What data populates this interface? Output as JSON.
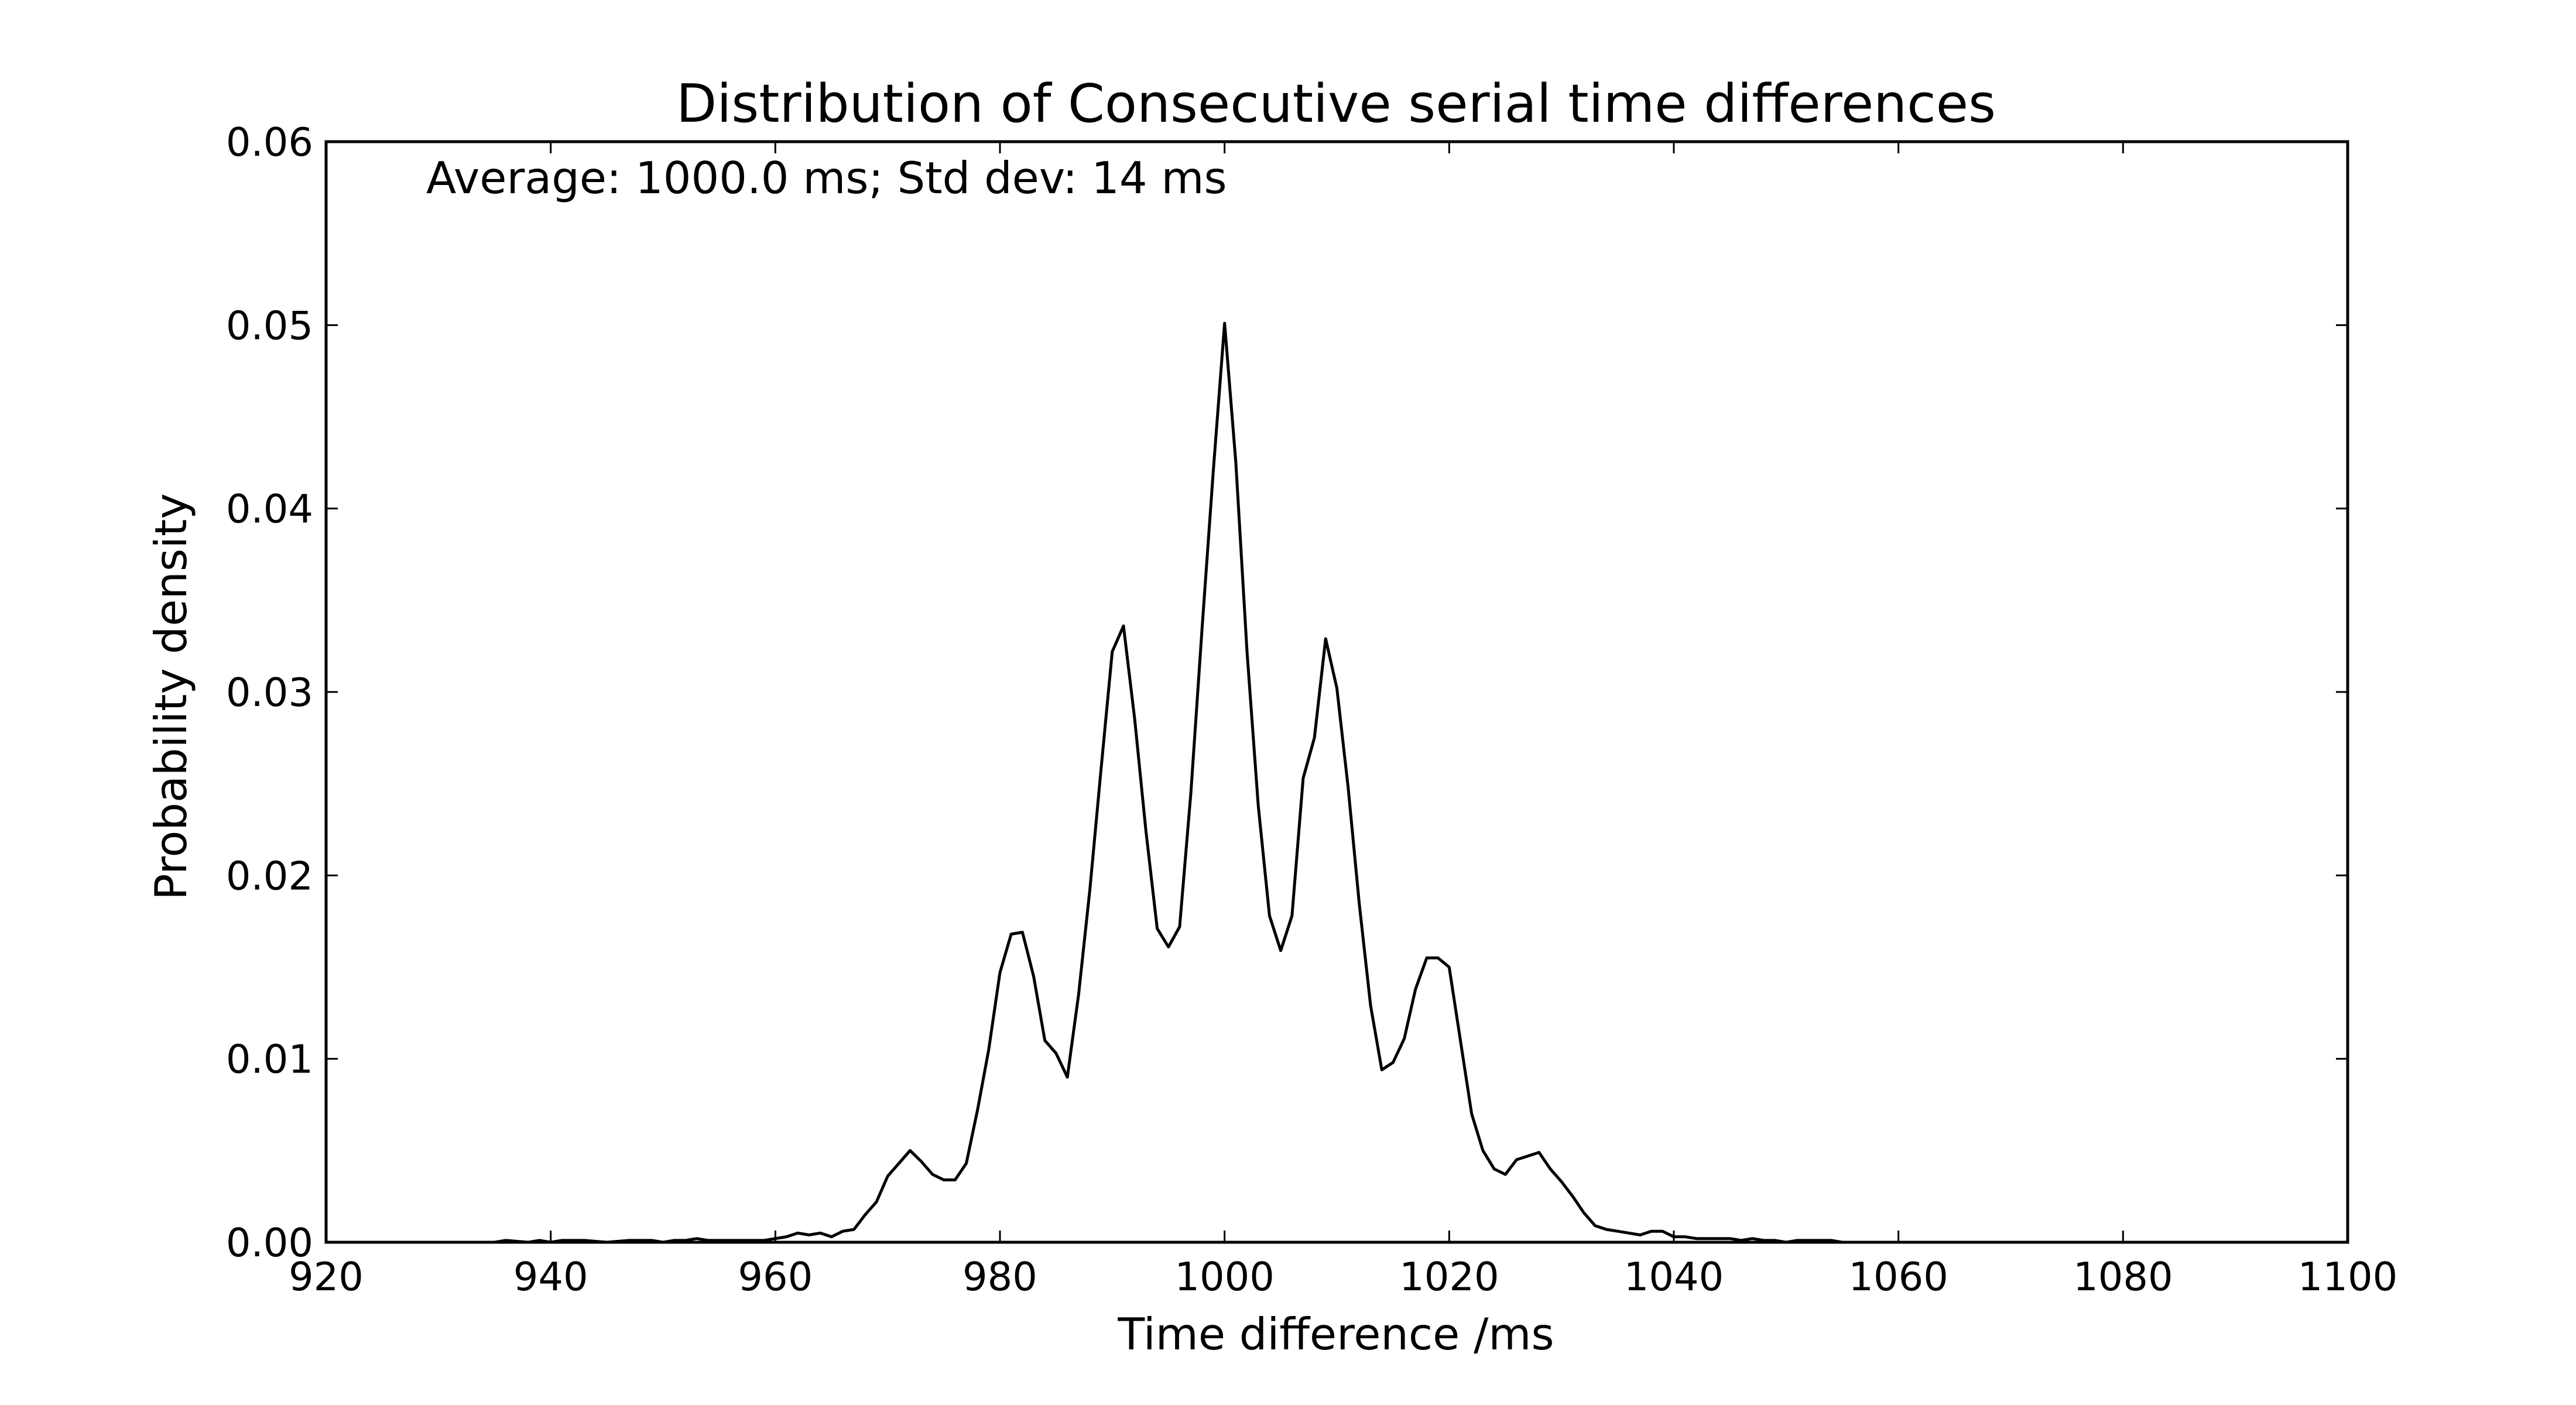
{
  "chart_data": {
    "type": "line",
    "title": "Distribution of Consecutive serial time differences",
    "xlabel": "Time difference /ms",
    "ylabel": "Probability density",
    "annotation": "Average: 1000.0 ms;  Std dev: 14 ms",
    "xlim": [
      920,
      1100
    ],
    "ylim": [
      0,
      0.06
    ],
    "x_ticks": [
      920,
      940,
      960,
      980,
      1000,
      1020,
      1040,
      1060,
      1080,
      1100
    ],
    "y_ticks": [
      0.0,
      0.01,
      0.02,
      0.03,
      0.04,
      0.05,
      0.06
    ],
    "x_tick_labels": [
      "920",
      "940",
      "960",
      "980",
      "1000",
      "1020",
      "1040",
      "1060",
      "1080",
      "1100"
    ],
    "y_tick_labels": [
      "0.00",
      "0.01",
      "0.02",
      "0.03",
      "0.04",
      "0.05",
      "0.06"
    ],
    "grid": false,
    "line_color": "#000000",
    "series": [
      {
        "x": [
          929,
          932,
          935,
          936,
          938,
          939,
          940,
          941,
          942,
          943,
          945,
          947,
          948,
          949,
          950,
          951,
          952,
          953,
          954,
          955,
          956,
          957,
          958,
          959,
          960,
          961,
          962,
          963,
          964,
          965,
          966,
          967,
          968,
          969,
          970,
          971,
          972,
          973,
          974,
          975,
          976,
          977,
          978,
          979,
          980,
          981,
          982,
          983,
          984,
          985,
          986,
          987,
          988,
          989,
          990,
          991,
          992,
          993,
          994,
          995,
          996,
          997,
          998,
          999,
          1000,
          1001,
          1002,
          1003,
          1004,
          1005,
          1006,
          1007,
          1008,
          1009,
          1010,
          1011,
          1012,
          1013,
          1014,
          1015,
          1016,
          1017,
          1018,
          1019,
          1020,
          1021,
          1022,
          1023,
          1024,
          1025,
          1026,
          1027,
          1028,
          1029,
          1030,
          1031,
          1032,
          1033,
          1034,
          1035,
          1036,
          1037,
          1038,
          1039,
          1040,
          1041,
          1042,
          1043,
          1044,
          1045,
          1046,
          1047,
          1048,
          1049,
          1050,
          1051,
          1052,
          1053,
          1054,
          1055,
          1056,
          1057,
          1058,
          1060,
          1062,
          1064,
          1066,
          1068,
          1070,
          1072,
          1074,
          1076,
          1080
        ],
        "y": [
          0.0,
          0.0,
          0.0,
          0.0001,
          0.0,
          0.0001,
          0.0,
          0.0001,
          0.0001,
          0.0001,
          0.0,
          0.0001,
          0.0001,
          0.0001,
          0.0,
          0.0001,
          0.0001,
          0.0002,
          0.0001,
          0.0001,
          0.0001,
          0.0001,
          0.0001,
          0.0001,
          0.0002,
          0.0003,
          0.0005,
          0.0004,
          0.0005,
          0.0003,
          0.0006,
          0.0007,
          0.0015,
          0.0022,
          0.0036,
          0.0043,
          0.005,
          0.0044,
          0.0037,
          0.0034,
          0.0034,
          0.0043,
          0.0072,
          0.0105,
          0.0147,
          0.0168,
          0.0169,
          0.0145,
          0.011,
          0.0103,
          0.009,
          0.0135,
          0.0192,
          0.0258,
          0.0322,
          0.0336,
          0.0285,
          0.0224,
          0.0171,
          0.0161,
          0.0172,
          0.0245,
          0.0335,
          0.0421,
          0.0501,
          0.0425,
          0.0322,
          0.0238,
          0.0178,
          0.0159,
          0.0178,
          0.0253,
          0.0275,
          0.0329,
          0.0302,
          0.0248,
          0.0184,
          0.0129,
          0.0094,
          0.0098,
          0.0111,
          0.0138,
          0.0155,
          0.0155,
          0.015,
          0.011,
          0.007,
          0.005,
          0.004,
          0.0037,
          0.0045,
          0.0047,
          0.0049,
          0.004,
          0.0033,
          0.0025,
          0.0016,
          0.0009,
          0.0007,
          0.0006,
          0.0005,
          0.0004,
          0.0006,
          0.0006,
          0.0003,
          0.0003,
          0.0002,
          0.0002,
          0.0002,
          0.0002,
          0.0001,
          0.0002,
          0.0001,
          0.0001,
          0.0,
          0.0001,
          0.0001,
          0.0001,
          0.0001,
          0.0,
          0.0,
          0.0,
          0.0,
          0.0,
          0.0,
          0.0,
          0.0,
          0.0,
          0.0,
          0.0,
          0.0,
          0.0,
          0.0
        ]
      }
    ]
  }
}
